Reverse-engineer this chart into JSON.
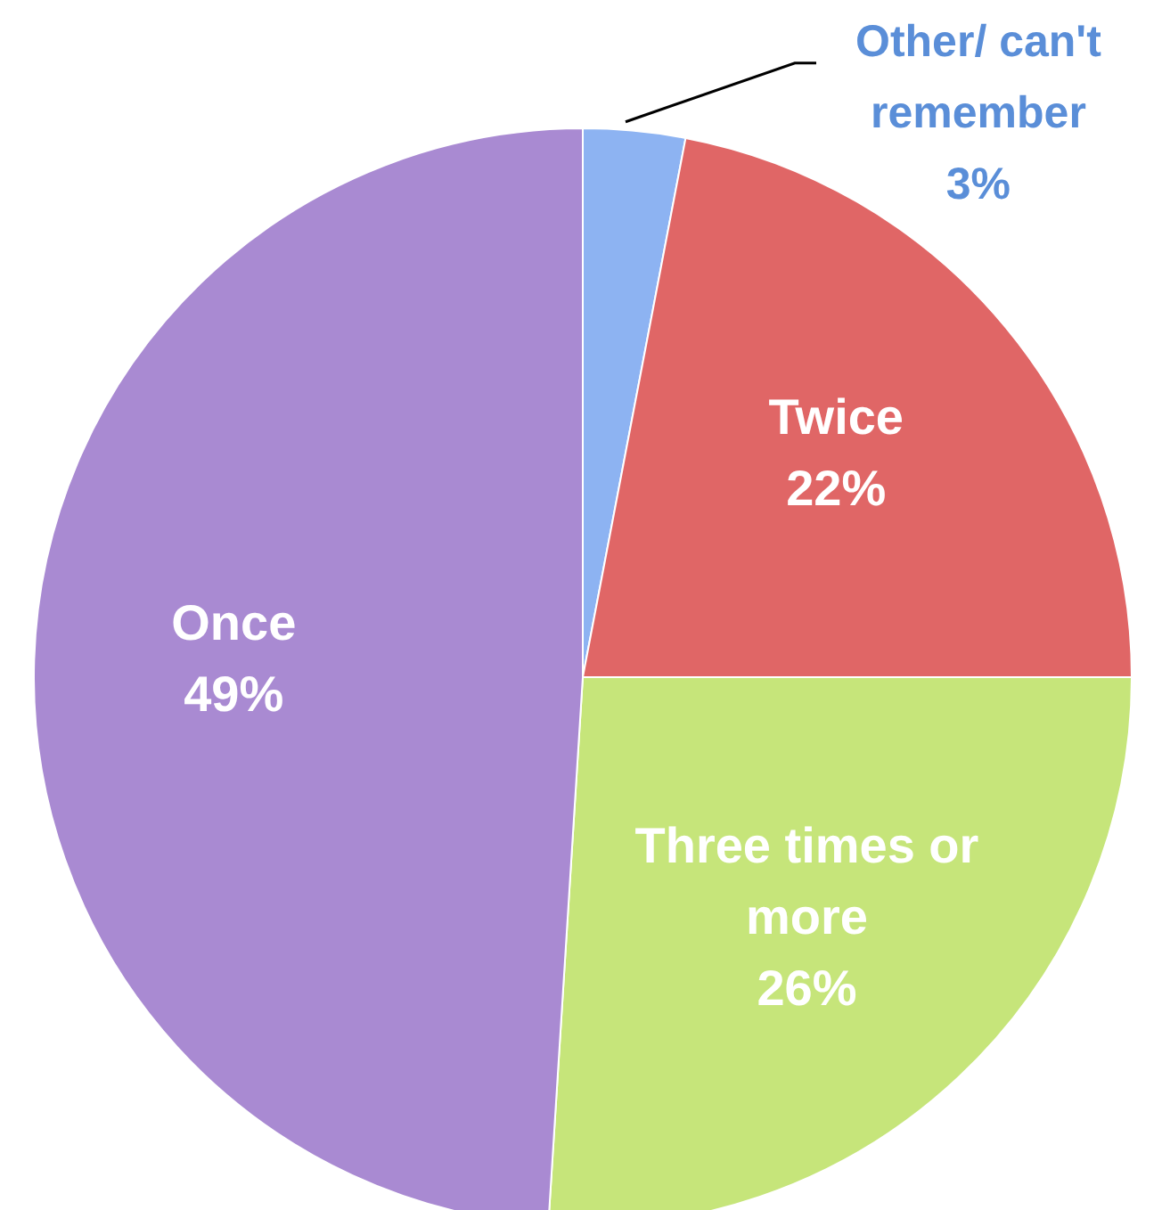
{
  "chart_data": {
    "type": "pie",
    "categories": [
      "Other/ can't remember",
      "Twice",
      "Three times or more",
      "Once"
    ],
    "values": [
      3,
      22,
      26,
      49
    ],
    "value_labels": [
      "3%",
      "22%",
      "26%",
      "49%"
    ],
    "colors": [
      "#8db3f2",
      "#e06666",
      "#c6e57a",
      "#a98ad2"
    ]
  }
}
